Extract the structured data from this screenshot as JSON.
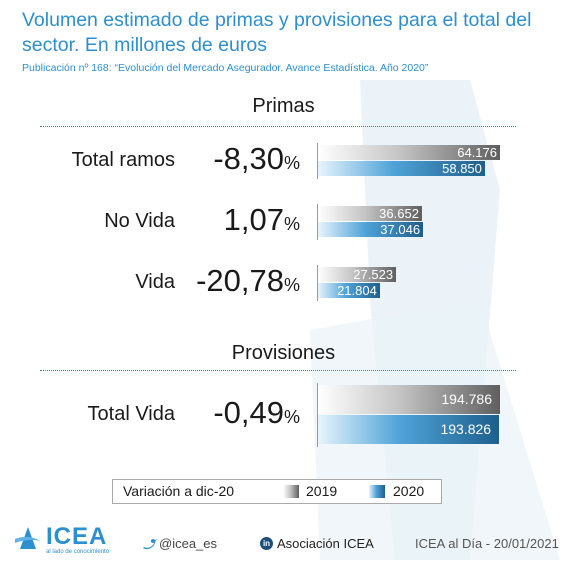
{
  "title": "Volumen estimado de primas y provisiones para el total del sector. En millones de euros",
  "subtitle": "Publicación nº 168: “Evolución del Mercado Asegurador. Avance Estadística. Año 2020”",
  "chart_data": [
    {
      "type": "bar",
      "title": "Primas",
      "categories": [
        "Total ramos",
        "No Vida",
        "Vida"
      ],
      "variation_pct": [
        "-8,30",
        "1,07",
        "-20,78"
      ],
      "series": [
        {
          "name": "2019",
          "values": [
            64176,
            36652,
            27523
          ],
          "labels": [
            "64.176",
            "36.652",
            "27.523"
          ]
        },
        {
          "name": "2020",
          "values": [
            58850,
            37046,
            21804
          ],
          "labels": [
            "58.850",
            "37.046",
            "21.804"
          ]
        }
      ],
      "percent_sign": "%",
      "legend_placement": "bottom"
    },
    {
      "type": "bar",
      "title": "Provisiones",
      "categories": [
        "Total Vida"
      ],
      "variation_pct": [
        "-0,49"
      ],
      "series": [
        {
          "name": "2019",
          "values": [
            194786
          ],
          "labels": [
            "194.786"
          ]
        },
        {
          "name": "2020",
          "values": [
            193826
          ],
          "labels": [
            "193.826"
          ]
        }
      ],
      "percent_sign": "%",
      "legend_placement": "bottom"
    }
  ],
  "legend": {
    "caption": "Variación a dic-20",
    "series_2019": "2019",
    "series_2020": "2020"
  },
  "footer": {
    "logo_text": "ICEA",
    "logo_tagline": "al lado de conocimiento",
    "twitter": "@icea_es",
    "linkedin": "Asociación ICEA",
    "edition": "ICEA al Día - 20/01/2021"
  },
  "colors": {
    "accent": "#2e8fcf",
    "series_2019": "#5f5f5f",
    "series_2020": "#1e5f8c"
  }
}
